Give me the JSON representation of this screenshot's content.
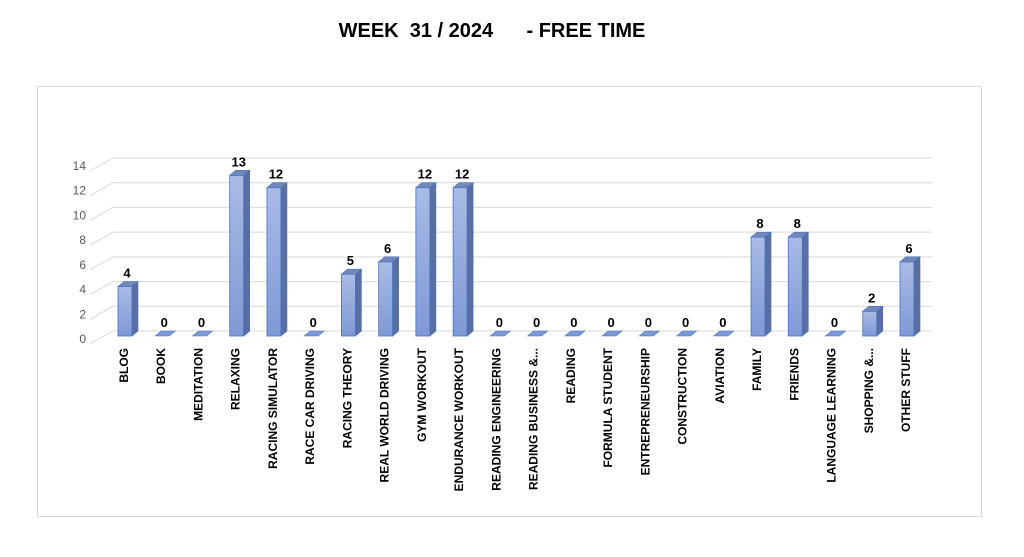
{
  "chart_data": {
    "type": "bar",
    "title": "WEEK  31 / 2024      - FREE TIME",
    "xlabel": "",
    "ylabel": "",
    "ylim": [
      0,
      14
    ],
    "yticks": [
      0,
      2,
      4,
      6,
      8,
      10,
      12,
      14
    ],
    "grid": true,
    "legend": "none",
    "style": "3d-column",
    "bar_color": "#8fa8dc",
    "categories": [
      "BLOG",
      "BOOK",
      "MEDITATION",
      "RELAXING",
      "RACING SIMULATOR",
      "RACE CAR DRIVING",
      "RACING THEORY",
      "REAL WORLD DRIVING",
      "GYM WORKOUT",
      "ENDURANCE WORKOUT",
      "READING ENGINEERING",
      "READING BUSINESS &...",
      "READING",
      "FORMULA STUDENT",
      "ENTREPRENEURSHIP",
      "CONSTRUCTION",
      "AVIATION",
      "FAMILY",
      "FRIENDS",
      "LANGUAGE LEARNING",
      "SHOPPING &...",
      "OTHER STUFF"
    ],
    "values": [
      4,
      0,
      0,
      13,
      12,
      0,
      5,
      6,
      12,
      12,
      0,
      0,
      0,
      0,
      0,
      0,
      0,
      8,
      8,
      0,
      2,
      6
    ]
  }
}
